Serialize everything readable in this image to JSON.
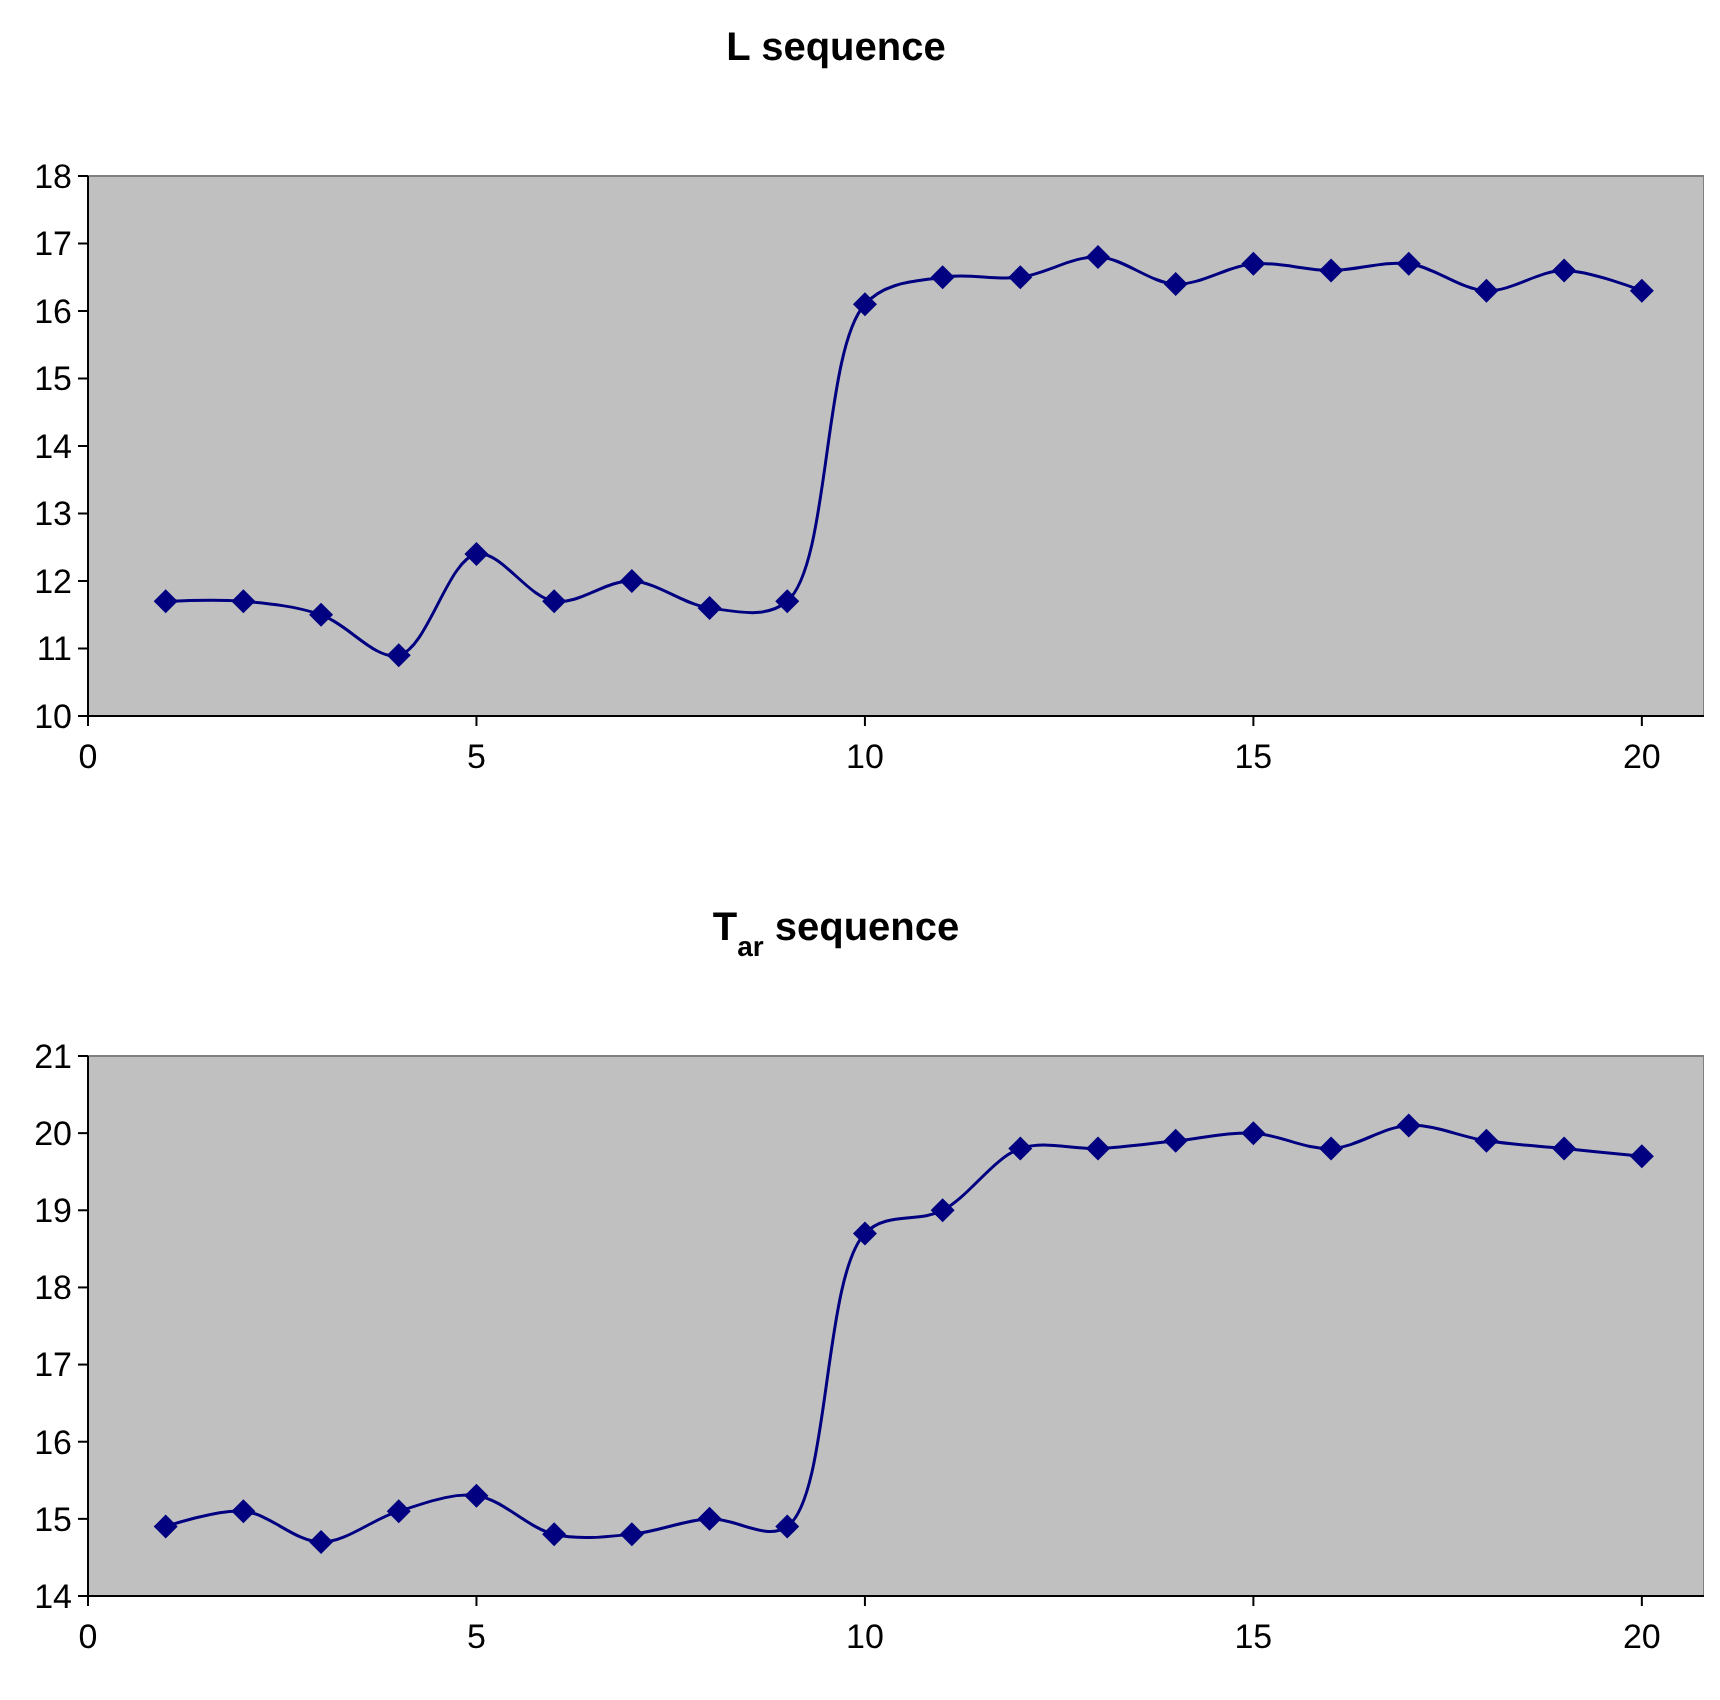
{
  "chart_data": [
    {
      "type": "line",
      "title": "L sequence",
      "x": [
        1,
        2,
        3,
        4,
        5,
        6,
        7,
        8,
        9,
        10,
        11,
        12,
        13,
        14,
        15,
        16,
        17,
        18,
        19,
        20
      ],
      "series": [
        {
          "color": "#000080",
          "values": [
            11.7,
            11.7,
            11.5,
            10.9,
            12.4,
            11.7,
            12.0,
            11.6,
            11.7,
            16.1,
            16.5,
            16.5,
            16.8,
            16.4,
            16.7,
            16.6,
            16.7,
            16.3,
            16.6,
            16.3
          ]
        }
      ],
      "xlim": [
        0,
        20.8
      ],
      "xticks": [
        0,
        5,
        10,
        15,
        20
      ],
      "ylim": [
        10,
        18
      ],
      "yticks": [
        10,
        11,
        12,
        13,
        14,
        15,
        16,
        17,
        18
      ],
      "marker": "diamond",
      "grid": false
    },
    {
      "type": "line",
      "title": "T$_{ar}$ sequence",
      "x": [
        1,
        2,
        3,
        4,
        5,
        6,
        7,
        8,
        9,
        10,
        11,
        12,
        13,
        14,
        15,
        16,
        17,
        18,
        19,
        20
      ],
      "series": [
        {
          "color": "#000080",
          "values": [
            14.9,
            15.1,
            14.7,
            15.1,
            15.3,
            14.8,
            14.8,
            15.0,
            14.9,
            18.7,
            19.0,
            19.8,
            19.8,
            19.9,
            20.0,
            19.8,
            20.1,
            19.9,
            19.8,
            19.7
          ]
        }
      ],
      "xlim": [
        0,
        20.8
      ],
      "xticks": [
        0,
        5,
        10,
        15,
        20
      ],
      "ylim": [
        14,
        21
      ],
      "yticks": [
        14,
        15,
        16,
        17,
        18,
        19,
        20,
        21
      ],
      "marker": "diamond",
      "grid": false
    }
  ]
}
